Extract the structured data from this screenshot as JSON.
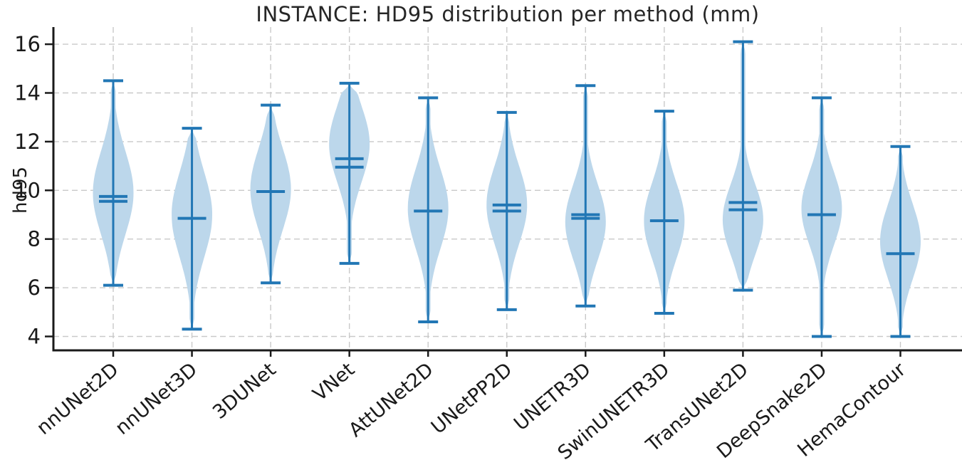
{
  "page": {
    "background": "#ffffff"
  },
  "chart_data": {
    "type": "violin",
    "title": "INSTANCE: HD95 distribution per method (mm)",
    "ylabel": "hd95",
    "xlabel": "",
    "categories": [
      "nnUNet2D",
      "nnUNet3D",
      "3DUNet",
      "VNet",
      "AttUNet2D",
      "UNetPP2D",
      "UNETR3D",
      "SwinUNETR3D",
      "TransUNet2D",
      "DeepSnake2D",
      "HemaContour"
    ],
    "yticks": [
      16,
      14,
      12,
      10,
      8,
      6,
      4
    ],
    "ylim": [
      3.4,
      16.7
    ],
    "grid": "both, dashed light-gray",
    "legend": "none",
    "series": [
      {
        "name": "nnUNet2D",
        "min": 6.1,
        "max": 14.5,
        "median": 9.55,
        "mean": 9.75,
        "kde_peak": 9.9,
        "kde_sigma": 1.7
      },
      {
        "name": "nnUNet3D",
        "min": 4.3,
        "max": 12.55,
        "median": 8.85,
        "mean": 8.85,
        "kde_peak": 9.0,
        "kde_sigma": 1.75
      },
      {
        "name": "3DUNet",
        "min": 6.2,
        "max": 13.5,
        "median": 9.95,
        "mean": 9.95,
        "kde_peak": 10.05,
        "kde_sigma": 1.65
      },
      {
        "name": "VNet",
        "min": 7.0,
        "max": 14.4,
        "median": 10.95,
        "mean": 11.3,
        "kde_peak": 11.9,
        "kde_sigma": 1.55
      },
      {
        "name": "AttUNet2D",
        "min": 4.6,
        "max": 13.8,
        "median": 9.15,
        "mean": 9.15,
        "kde_peak": 9.25,
        "kde_sigma": 1.65
      },
      {
        "name": "UNetPP2D",
        "min": 5.1,
        "max": 13.2,
        "median": 9.15,
        "mean": 9.4,
        "kde_peak": 9.4,
        "kde_sigma": 1.6
      },
      {
        "name": "UNETR3D",
        "min": 5.25,
        "max": 14.3,
        "median": 8.85,
        "mean": 9.0,
        "kde_peak": 8.7,
        "kde_sigma": 1.55
      },
      {
        "name": "SwinUNETR3D",
        "min": 4.95,
        "max": 13.25,
        "median": 8.75,
        "mean": 8.75,
        "kde_peak": 8.75,
        "kde_sigma": 1.55
      },
      {
        "name": "TransUNet2D",
        "min": 5.9,
        "max": 16.1,
        "median": 9.2,
        "mean": 9.5,
        "kde_peak": 8.8,
        "kde_sigma": 1.45
      },
      {
        "name": "DeepSnake2D",
        "min": 4.0,
        "max": 13.8,
        "median": 9.0,
        "mean": 9.0,
        "kde_peak": 9.25,
        "kde_sigma": 1.5
      },
      {
        "name": "HemaContour",
        "min": 4.0,
        "max": 11.8,
        "median": 7.4,
        "mean": 7.4,
        "kde_peak": 7.9,
        "kde_sigma": 1.55
      }
    ],
    "colors": {
      "violin_fill": "#bcd7eb",
      "violin_line": "#2277b5",
      "grid": "#c9c9c9",
      "axis": "#1a1a1a",
      "title_text": "#262626"
    }
  }
}
